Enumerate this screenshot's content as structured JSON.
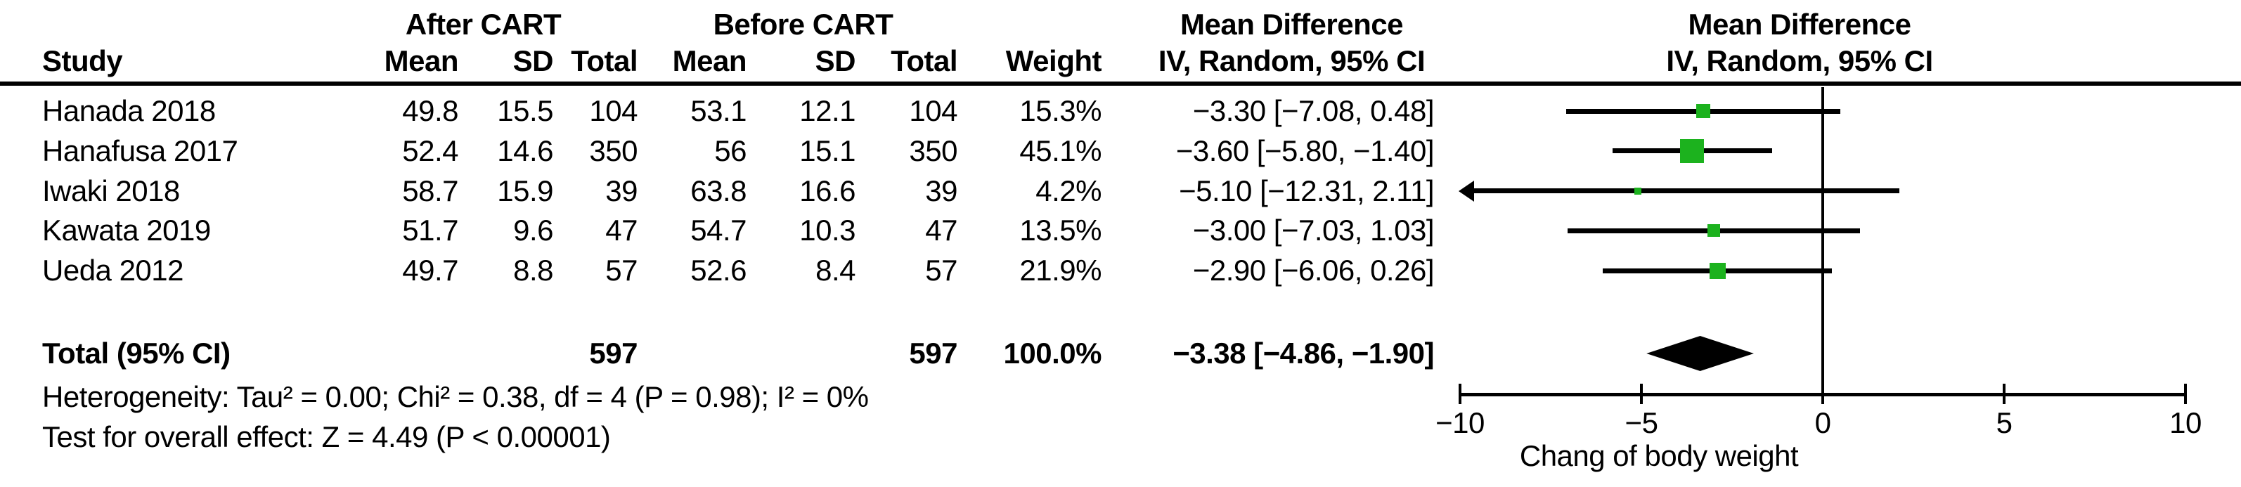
{
  "table": {
    "group_headers": {
      "after": "After CART",
      "before": "Before CART",
      "md_left": "Mean Difference",
      "md_right": "Mean Difference"
    },
    "col_headers": {
      "study": "Study",
      "mean": "Mean",
      "sd": "SD",
      "total": "Total",
      "weight": "Weight",
      "ci": "IV, Random, 95% CI",
      "ci_right": "IV, Random, 95% CI"
    },
    "rows": [
      {
        "study": "Hanada 2018",
        "a_mean": "49.8",
        "a_sd": "15.5",
        "a_total": "104",
        "b_mean": "53.1",
        "b_sd": "12.1",
        "b_total": "104",
        "weight": "15.3%",
        "ci": "−3.30 [−7.08, 0.48]"
      },
      {
        "study": "Hanafusa 2017",
        "a_mean": "52.4",
        "a_sd": "14.6",
        "a_total": "350",
        "b_mean": "56",
        "b_sd": "15.1",
        "b_total": "350",
        "weight": "45.1%",
        "ci": "−3.60 [−5.80, −1.40]"
      },
      {
        "study": "Iwaki 2018",
        "a_mean": "58.7",
        "a_sd": "15.9",
        "a_total": "39",
        "b_mean": "63.8",
        "b_sd": "16.6",
        "b_total": "39",
        "weight": "4.2%",
        "ci": "−5.10 [−12.31, 2.11]"
      },
      {
        "study": "Kawata 2019",
        "a_mean": "51.7",
        "a_sd": "9.6",
        "a_total": "47",
        "b_mean": "54.7",
        "b_sd": "10.3",
        "b_total": "47",
        "weight": "13.5%",
        "ci": "−3.00 [−7.03, 1.03]"
      },
      {
        "study": "Ueda 2012",
        "a_mean": "49.7",
        "a_sd": "8.8",
        "a_total": "57",
        "b_mean": "52.6",
        "b_sd": "8.4",
        "b_total": "57",
        "weight": "21.9%",
        "ci": "−2.90 [−6.06, 0.26]"
      }
    ],
    "total_row": {
      "label": "Total (95% CI)",
      "a_total": "597",
      "b_total": "597",
      "weight": "100.0%",
      "ci": "−3.38 [−4.86, −1.90]"
    },
    "heterogeneity": "Heterogeneity: Tau² = 0.00; Chi² = 0.38, df = 4 (P = 0.98); I² = 0%",
    "overall_effect": "Test for overall effect: Z = 4.49 (P < 0.00001)"
  },
  "chart_data": {
    "type": "forest",
    "title": "Mean Difference",
    "method": "IV, Random, 95% CI",
    "axis": {
      "min": -10,
      "max": 10,
      "ticks": [
        -10,
        -5,
        0,
        5,
        10
      ],
      "tick_labels": [
        "−10",
        "−5",
        "0",
        "5",
        "10"
      ],
      "label": "Chang of body weight"
    },
    "marker_color": "#1cb21e",
    "line_color": "#000000",
    "studies": [
      {
        "name": "Hanada 2018",
        "after": {
          "mean": 49.8,
          "sd": 15.5,
          "n": 104
        },
        "before": {
          "mean": 53.1,
          "sd": 12.1,
          "n": 104
        },
        "weight": 15.3,
        "md": -3.3,
        "ci_lo": -7.08,
        "ci_hi": 0.48
      },
      {
        "name": "Hanafusa 2017",
        "after": {
          "mean": 52.4,
          "sd": 14.6,
          "n": 350
        },
        "before": {
          "mean": 56,
          "sd": 15.1,
          "n": 350
        },
        "weight": 45.1,
        "md": -3.6,
        "ci_lo": -5.8,
        "ci_hi": -1.4
      },
      {
        "name": "Iwaki 2018",
        "after": {
          "mean": 58.7,
          "sd": 15.9,
          "n": 39
        },
        "before": {
          "mean": 63.8,
          "sd": 16.6,
          "n": 39
        },
        "weight": 4.2,
        "md": -5.1,
        "ci_lo": -12.31,
        "ci_hi": 2.11
      },
      {
        "name": "Kawata 2019",
        "after": {
          "mean": 51.7,
          "sd": 9.6,
          "n": 47
        },
        "before": {
          "mean": 54.7,
          "sd": 10.3,
          "n": 47
        },
        "weight": 13.5,
        "md": -3.0,
        "ci_lo": -7.03,
        "ci_hi": 1.03
      },
      {
        "name": "Ueda 2012",
        "after": {
          "mean": 49.7,
          "sd": 8.8,
          "n": 57
        },
        "before": {
          "mean": 52.6,
          "sd": 8.4,
          "n": 57
        },
        "weight": 21.9,
        "md": -2.9,
        "ci_lo": -6.06,
        "ci_hi": 0.26
      }
    ],
    "total": {
      "n_after": 597,
      "n_before": 597,
      "weight": 100.0,
      "md": -3.38,
      "ci_lo": -4.86,
      "ci_hi": -1.9
    }
  }
}
